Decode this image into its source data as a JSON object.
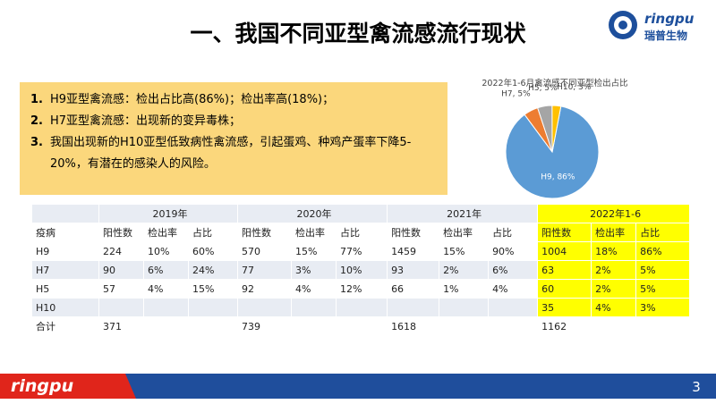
{
  "header": {
    "title": "一、我国不同亚型禽流感流行现状",
    "logo_brand": "ringpu",
    "logo_name": "瑞普生物"
  },
  "bullets": [
    {
      "number": "1.",
      "text": "H9亚型禽流感：检出占比高(86%)；检出率高(18%)；"
    },
    {
      "number": "2.",
      "text": "H7亚型禽流感：出现新的变异毒株；"
    },
    {
      "number": "3.",
      "text": "我国出现新的H10亚型低致病性禽流感，引起蛋鸡、种鸡产蛋率下降5-20%，有潜在的感染人的风险。"
    }
  ],
  "chart_data": {
    "type": "pie",
    "title": "2022年1-6月禽流感不同亚型检出占比",
    "categories": [
      "H9",
      "H7",
      "H5",
      "H10"
    ],
    "values": [
      86,
      5,
      5,
      3
    ],
    "value_labels": [
      "H9, 86%",
      "H7, 5%",
      "H5, 5%",
      "H10, 3%"
    ],
    "colors": [
      "#5b9bd5",
      "#ed7d31",
      "#a5a5a5",
      "#ffc000"
    ]
  },
  "table": {
    "year_headers": [
      "2019年",
      "2020年",
      "2021年",
      "2022年1-6"
    ],
    "sub_header": [
      "疫病",
      "阳性数",
      "检出率",
      "占比",
      "阳性数",
      "检出率",
      "占比",
      "阳性数",
      "检出率",
      "占比",
      "阳性数",
      "检出率",
      "占比"
    ],
    "rows": [
      [
        "H9",
        "224",
        "10%",
        "60%",
        "570",
        "15%",
        "77%",
        "1459",
        "15%",
        "90%",
        "1004",
        "18%",
        "86%"
      ],
      [
        "H7",
        "90",
        "6%",
        "24%",
        "77",
        "3%",
        "10%",
        "93",
        "2%",
        "6%",
        "63",
        "2%",
        "5%"
      ],
      [
        "H5",
        "57",
        "4%",
        "15%",
        "92",
        "4%",
        "12%",
        "66",
        "1%",
        "4%",
        "60",
        "2%",
        "5%"
      ],
      [
        "H10",
        null,
        null,
        null,
        null,
        null,
        null,
        null,
        null,
        null,
        "35",
        "4%",
        "3%"
      ],
      [
        "合计",
        "371",
        null,
        null,
        "739",
        null,
        null,
        "1618",
        null,
        null,
        "1162",
        null,
        null
      ]
    ]
  },
  "footer": {
    "brand": "ringpu",
    "page_number": "3"
  }
}
